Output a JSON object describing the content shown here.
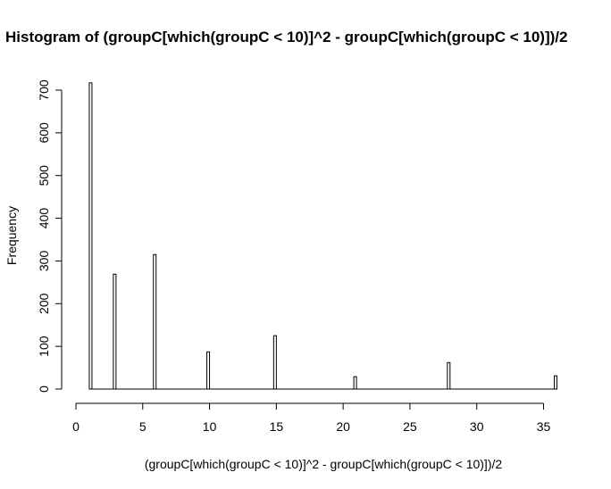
{
  "chart_data": {
    "type": "bar",
    "title": "Histogram of (groupC[which(groupC < 10)]^2 - groupC[which(groupC < 10)])/2",
    "xlabel": "(groupC[which(groupC < 10)]^2 - groupC[which(groupC < 10)])/2",
    "ylabel": "Frequency",
    "xlim": [
      0,
      36
    ],
    "ylim": [
      0,
      700
    ],
    "bin_width": 0.2,
    "x_ticks": [
      0,
      5,
      10,
      15,
      20,
      25,
      30,
      35
    ],
    "y_ticks": [
      0,
      100,
      200,
      300,
      400,
      500,
      600,
      700
    ],
    "grid": false,
    "bins": [
      {
        "x_start": 1.0,
        "x_end": 1.2,
        "count": 717
      },
      {
        "x_start": 2.8,
        "x_end": 3.0,
        "count": 269
      },
      {
        "x_start": 5.8,
        "x_end": 6.0,
        "count": 315
      },
      {
        "x_start": 9.8,
        "x_end": 10.0,
        "count": 87
      },
      {
        "x_start": 14.8,
        "x_end": 15.0,
        "count": 125
      },
      {
        "x_start": 20.8,
        "x_end": 21.0,
        "count": 29
      },
      {
        "x_start": 27.8,
        "x_end": 28.0,
        "count": 62
      },
      {
        "x_start": 35.8,
        "x_end": 36.0,
        "count": 31
      }
    ]
  }
}
